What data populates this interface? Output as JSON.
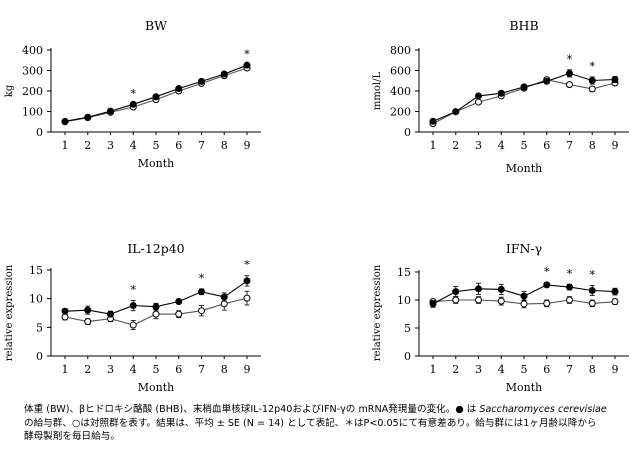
{
  "chart_data": [
    {
      "type": "line",
      "title": "BW",
      "xlabel": "Month",
      "ylabel": "kg",
      "x": [
        1,
        2,
        3,
        4,
        5,
        6,
        7,
        8,
        9
      ],
      "xticks": [
        "1",
        "2",
        "3",
        "4",
        "5",
        "6",
        "7",
        "8",
        "9"
      ],
      "yticks": [
        "0",
        "100",
        "200",
        "300",
        "400"
      ],
      "ylim": [
        0,
        400
      ],
      "series": [
        {
          "marker": "filled",
          "values": [
            52,
            72,
            102,
            135,
            172,
            212,
            247,
            283,
            326
          ],
          "err": [
            0,
            0,
            0,
            0,
            0,
            0,
            0,
            0,
            0
          ]
        },
        {
          "marker": "open",
          "values": [
            50,
            70,
            96,
            122,
            158,
            200,
            237,
            275,
            312
          ],
          "err": [
            0,
            0,
            0,
            0,
            0,
            0,
            0,
            0,
            0
          ]
        }
      ],
      "significance": [
        4,
        9
      ],
      "legend": false,
      "grid": false
    },
    {
      "type": "line",
      "title": "BHB",
      "xlabel": "Month",
      "ylabel": "mmol/L",
      "x": [
        1,
        2,
        3,
        4,
        5,
        6,
        7,
        8,
        9
      ],
      "xticks": [
        "1",
        "2",
        "3",
        "4",
        "5",
        "6",
        "7",
        "8",
        "9"
      ],
      "yticks": [
        "0",
        "200",
        "400",
        "600",
        "800"
      ],
      "ylim": [
        0,
        800
      ],
      "series": [
        {
          "marker": "filled",
          "values": [
            105,
            198,
            352,
            378,
            440,
            495,
            572,
            502,
            512
          ],
          "err": [
            10,
            10,
            15,
            15,
            20,
            20,
            35,
            35,
            30
          ]
        },
        {
          "marker": "open",
          "values": [
            82,
            198,
            292,
            352,
            428,
            510,
            462,
            420,
            478
          ],
          "err": [
            10,
            10,
            15,
            15,
            20,
            20,
            20,
            25,
            20
          ]
        }
      ],
      "significance": [
        7,
        8
      ],
      "legend": false,
      "grid": false
    },
    {
      "type": "line",
      "title": "IL-12p40",
      "xlabel": "Month",
      "ylabel": "relative expression",
      "x": [
        1,
        2,
        3,
        4,
        5,
        6,
        7,
        8,
        9
      ],
      "xticks": [
        "1",
        "2",
        "3",
        "4",
        "5",
        "6",
        "7",
        "8",
        "9"
      ],
      "yticks": [
        "0",
        "5",
        "10",
        "15"
      ],
      "ylim": [
        0,
        15
      ],
      "series": [
        {
          "marker": "filled",
          "values": [
            7.8,
            8.0,
            7.3,
            8.8,
            8.6,
            9.5,
            11.2,
            10.3,
            13.1
          ],
          "err": [
            0.5,
            0.7,
            0.5,
            0.9,
            0.6,
            0.4,
            0.5,
            0.7,
            0.9
          ]
        },
        {
          "marker": "open",
          "values": [
            6.8,
            6.0,
            6.5,
            5.4,
            7.3,
            7.3,
            7.9,
            9.1,
            10.1
          ],
          "err": [
            0.5,
            0.5,
            0.5,
            0.8,
            0.8,
            0.6,
            0.9,
            1.1,
            1.2
          ]
        }
      ],
      "significance": [
        4,
        7,
        9
      ],
      "legend": false,
      "grid": false
    },
    {
      "type": "line",
      "title": "IFN-γ",
      "xlabel": "Month",
      "ylabel": "relative expression",
      "x": [
        1,
        2,
        3,
        4,
        5,
        6,
        7,
        8,
        9
      ],
      "xticks": [
        "1",
        "2",
        "3",
        "4",
        "5",
        "6",
        "7",
        "8",
        "9"
      ],
      "yticks": [
        "0",
        "5",
        "10",
        "15"
      ],
      "ylim": [
        0,
        15
      ],
      "series": [
        {
          "marker": "filled",
          "values": [
            9.3,
            11.5,
            12.0,
            11.9,
            10.7,
            12.7,
            12.3,
            11.7,
            11.5
          ],
          "err": [
            0.6,
            0.9,
            1.0,
            0.9,
            0.8,
            0.4,
            0.5,
            0.9,
            0.6
          ]
        },
        {
          "marker": "open",
          "values": [
            9.7,
            10.0,
            10.0,
            9.8,
            9.3,
            9.4,
            10.0,
            9.4,
            9.7
          ],
          "err": [
            0.5,
            0.6,
            0.6,
            0.7,
            0.7,
            0.6,
            0.6,
            0.6,
            0.5
          ]
        }
      ],
      "significance": [
        6,
        7,
        8
      ],
      "legend": false,
      "grid": false
    }
  ],
  "significance_symbol": "*",
  "caption": {
    "line1_a": "体重 (BW)、βヒドロキシ酪酸 (BHB)、末梢血単核球IL-12p40およびIFN-γの mRNA発現量の変化。● は ",
    "species": "Saccharomyces cerevisiae",
    "line2": "の給与群、○は対照群を表す。結果は、平均 ± SE (N = 14) として表記、＊はP<0.05にて有意差あり。給与群には1ヶ月齢以降から",
    "line3": "酵母製剤を毎日給与。"
  }
}
